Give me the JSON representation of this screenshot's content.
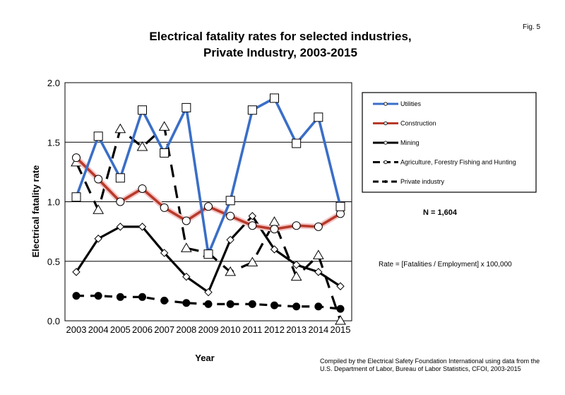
{
  "figure_label": "Fig. 5",
  "chart_data": {
    "type": "line",
    "title": "Electrical fatality rates for selected industries,",
    "subtitle": "Private Industry, 2003-2015",
    "xlabel": "Year",
    "ylabel": "Electrical fatality rate",
    "ylim": [
      0,
      2.0
    ],
    "y_ticks": [
      "0.0",
      "0.5",
      "1.0",
      "1.5",
      "2.0"
    ],
    "grid": "horizontal at 0.5 intervals",
    "legend_position": "right",
    "categories": [
      "2003",
      "2004",
      "2005",
      "2006",
      "2007",
      "2008",
      "2009",
      "2010",
      "2011",
      "2012",
      "2013",
      "2014",
      "2015"
    ],
    "series": [
      {
        "name": "Utilities",
        "color": "#3a6ec8",
        "dash": "solid",
        "marker": "square",
        "values": [
          1.04,
          1.55,
          1.2,
          1.77,
          1.41,
          1.79,
          0.56,
          1.01,
          1.77,
          1.87,
          1.49,
          1.71,
          0.96
        ]
      },
      {
        "name": "Construction",
        "color": "#b83a2a",
        "dash": "solid",
        "marker": "circle",
        "values": [
          1.37,
          1.19,
          1.0,
          1.11,
          0.95,
          0.84,
          0.96,
          0.88,
          0.8,
          0.77,
          0.8,
          0.79,
          0.9
        ]
      },
      {
        "name": "Mining",
        "color": "#000000",
        "dash": "solid",
        "marker": "diamond",
        "values": [
          0.41,
          0.69,
          0.79,
          0.79,
          0.57,
          0.37,
          0.24,
          0.68,
          0.88,
          0.6,
          0.47,
          0.41,
          0.29
        ]
      },
      {
        "name": "Agriculture, Forestry Fishing and Hunting",
        "color": "#000000",
        "dash": "longdash",
        "marker": "triangle",
        "values": [
          1.33,
          0.93,
          1.61,
          1.46,
          1.63,
          0.61,
          0.57,
          0.41,
          0.49,
          0.83,
          0.37,
          0.55,
          0.0
        ]
      },
      {
        "name": "Private industry",
        "color": "#000000",
        "dash": "dash",
        "marker": "dot",
        "values": [
          0.21,
          0.21,
          0.2,
          0.2,
          0.17,
          0.15,
          0.14,
          0.14,
          0.14,
          0.13,
          0.12,
          0.12,
          0.1
        ]
      }
    ]
  },
  "annotations": {
    "n_label": "N = 1,604",
    "rate_formula": "Rate = [Fatalities / Employment] x 100,000",
    "source_line1": "Compiled by the Electrical Safety Foundation International using data from the",
    "source_line2": "U.S. Department of Labor, Bureau of Labor Statistics, CFOI, 2003-2015"
  }
}
